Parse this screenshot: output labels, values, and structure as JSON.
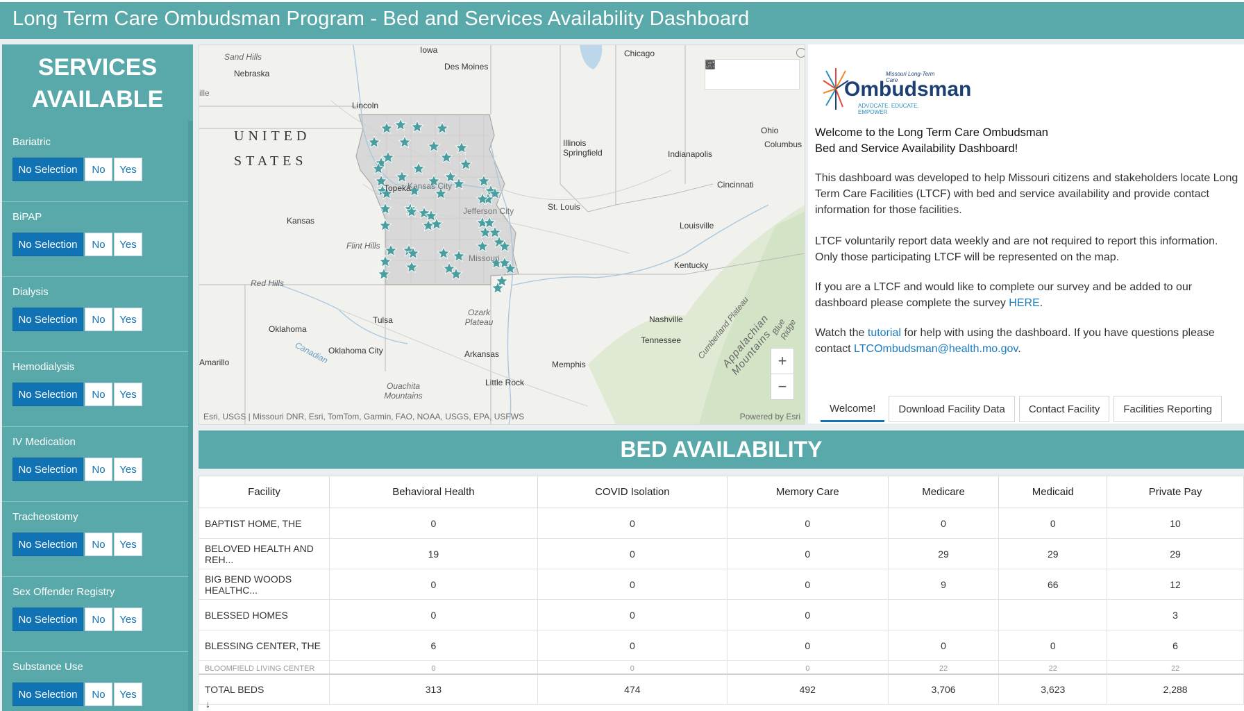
{
  "header": {
    "title": "Long Term Care Ombudsman Program - Bed and Services Availability Dashboard"
  },
  "sidebar": {
    "title_line1": "SERVICES",
    "title_line2": "AVAILABLE",
    "filters": [
      {
        "label": "Bariatric",
        "options": [
          "No Selection",
          "No",
          "Yes"
        ],
        "selected": "No Selection"
      },
      {
        "label": "BiPAP",
        "options": [
          "No Selection",
          "No",
          "Yes"
        ],
        "selected": "No Selection"
      },
      {
        "label": "Dialysis",
        "options": [
          "No Selection",
          "No",
          "Yes"
        ],
        "selected": "No Selection"
      },
      {
        "label": "Hemodialysis",
        "options": [
          "No Selection",
          "No",
          "Yes"
        ],
        "selected": "No Selection"
      },
      {
        "label": "IV Medication",
        "options": [
          "No Selection",
          "No",
          "Yes"
        ],
        "selected": "No Selection"
      },
      {
        "label": "Tracheostomy",
        "options": [
          "No Selection",
          "No",
          "Yes"
        ],
        "selected": "No Selection"
      },
      {
        "label": "Sex Offender Registry",
        "options": [
          "No Selection",
          "No",
          "Yes"
        ],
        "selected": "No Selection"
      },
      {
        "label": "Substance Use",
        "options": [
          "No Selection",
          "No",
          "Yes"
        ],
        "selected": "No Selection"
      }
    ]
  },
  "map": {
    "labels": {
      "sand_hills": "Sand Hills",
      "nebraska": "Nebraska",
      "iowa": "Iowa",
      "des_moines": "Des Moines",
      "chicago": "Chicago",
      "lincoln": "Lincoln",
      "united": "UNITED",
      "states": "STATES",
      "illinois": "Illinois",
      "springfield": "Springfield",
      "indianapolis": "Indianapolis",
      "ohio": "Ohio",
      "columbus": "Columbus",
      "topeka": "Topeka",
      "kansas_city": "Kansas City",
      "jefferson_city": "Jefferson City",
      "st_louis": "St. Louis",
      "cincinnati": "Cincinnati",
      "kansas": "Kansas",
      "louisville": "Louisville",
      "flint_hills": "Flint Hills",
      "missouri": "Missouri",
      "kentucky": "Kentucky",
      "red_hills": "Red Hills",
      "ozark_plateau": "Ozark Plateau",
      "nashville": "Nashville",
      "tulsa": "Tulsa",
      "oklahoma": "Oklahoma",
      "tennessee": "Tennessee",
      "oklahoma_city": "Oklahoma City",
      "arkansas": "Arkansas",
      "canadian": "Canadian",
      "amarillo": "Amarillo",
      "memphis": "Memphis",
      "ouachita_mountains": "Ouachita Mountains",
      "little_rock": "Little Rock",
      "cumberland_plateau": "Cumberland Plateau",
      "appalachian_mountains": "Appalachian Mountains",
      "blue_ridge": "Blue Ridge",
      "ille": "ille"
    },
    "attribution": "Esri, USGS | Missouri DNR, Esri, TomTom, Garmin, FAO, NOAA, USGS, EPA, USFWS",
    "powered_by": "Powered by Esri",
    "zoom_in": "+",
    "zoom_out": "−",
    "marker_color": "#4b9ea0"
  },
  "welcome": {
    "logo_word": "Ombudsman",
    "logo_tagline_top": "Missouri Long-Term Care",
    "logo_tagline_bottom": "ADVOCATE. EDUCATE. EMPOWER",
    "heading_line1": "Welcome to the Long Term Care Ombudsman",
    "heading_line2": "Bed and Service Availability Dashboard!",
    "p1": "This dashboard was developed to help Missouri citizens and stakeholders locate Long Term Care Facilities (LTCF) with bed and service availability and provide contact information for those facilities.",
    "p2": "LTCF voluntarily report data weekly and are not required to report this information.  Only those participating LTCF will be represented on the map.",
    "p3_start": "If you are a LTCF and would like to complete our survey and be added to our dashboard please complete the survey ",
    "p3_link": "HERE",
    "p3_end": ".",
    "p4_start": "Watch the ",
    "p4_link": "tutorial",
    "p4_mid": " for help with using the dashboard.  If you have questions please contact ",
    "p4_email": "LTCOmbudsman@health.mo.gov",
    "p4_end": ".",
    "tabs": [
      "Welcome!",
      "Download Facility Data",
      "Contact Facility",
      "Facilities Reporting"
    ]
  },
  "beds": {
    "title": "BED AVAILABILITY",
    "columns": [
      "Facility",
      "Behavioral Health",
      "COVID Isolation",
      "Memory Care",
      "Medicare",
      "Medicaid",
      "Private Pay"
    ],
    "rows": [
      [
        "BAPTIST HOME, THE",
        "0",
        "0",
        "0",
        "0",
        "0",
        "10"
      ],
      [
        "BELOVED HEALTH AND REH...",
        "19",
        "0",
        "0",
        "29",
        "29",
        "29"
      ],
      [
        "BIG BEND WOODS HEALTHC...",
        "0",
        "0",
        "0",
        "9",
        "66",
        "12"
      ],
      [
        "BLESSED HOMES",
        "0",
        "0",
        "0",
        "",
        "",
        "3"
      ],
      [
        "BLESSING CENTER, THE",
        "6",
        "0",
        "0",
        "0",
        "0",
        "6"
      ]
    ],
    "partial_row": [
      "BLOOMFIELD LIVING CENTER",
      "0",
      "0",
      "0",
      "22",
      "22",
      "22"
    ],
    "total": [
      "TOTAL BEDS",
      "313",
      "474",
      "492",
      "3,706",
      "3,623",
      "2,288"
    ]
  }
}
